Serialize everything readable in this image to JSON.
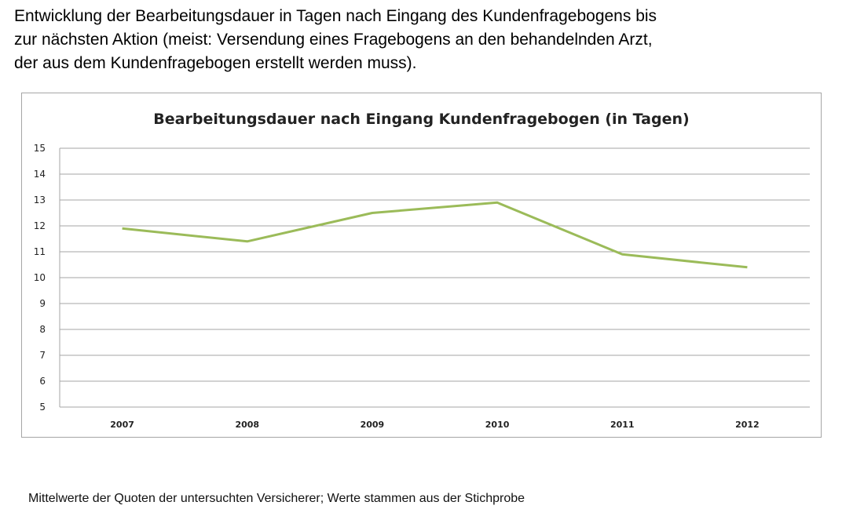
{
  "heading": {
    "line1": "Entwicklung der Bearbeitungsdauer in Tagen nach Eingang des Kundenfragebogens bis",
    "line2": "zur nächsten Aktion (meist: Versendung eines Fragebogens an den behandelnden Arzt,",
    "line3": "der aus dem Kundenfragebogen erstellt werden muss)."
  },
  "chart_data": {
    "type": "line",
    "title": "Bearbeitungsdauer nach Eingang Kundenfragebogen (in Tagen)",
    "xlabel": "",
    "ylabel": "",
    "categories": [
      "2007",
      "2008",
      "2009",
      "2010",
      "2011",
      "2012"
    ],
    "series": [
      {
        "values": [
          11.9,
          11.4,
          12.5,
          12.9,
          10.9,
          10.4
        ],
        "color": "#9bbb59"
      }
    ],
    "ylim": [
      5,
      15
    ],
    "yticks": [
      "5",
      "6",
      "7",
      "8",
      "9",
      "10",
      "11",
      "12",
      "13",
      "14",
      "15"
    ],
    "grid": true,
    "legend": "none"
  },
  "footnote": "Mittelwerte der Quoten der untersuchten Versicherer; Werte stammen aus der Stichprobe",
  "colors": {
    "line": "#9bbb59",
    "gridline": "#a6a6a6",
    "frame_border": "#a6a6a6"
  }
}
